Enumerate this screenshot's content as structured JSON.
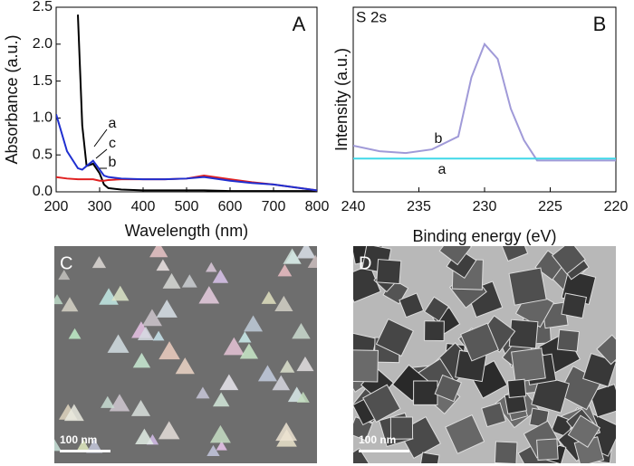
{
  "chart_data": [
    {
      "type": "line",
      "panel_label": "A",
      "xlabel": "Wavelength (nm)",
      "ylabel": "Absorbance (a.u.)",
      "x": [
        200,
        225,
        250,
        260,
        270,
        285,
        300,
        310,
        320,
        350,
        400,
        450,
        500,
        540,
        600,
        650,
        700,
        750,
        800
      ],
      "series": [
        {
          "name": "a",
          "color": "#000000",
          "values": [
            null,
            null,
            2.4,
            0.9,
            0.35,
            0.38,
            0.25,
            0.1,
            0.05,
            0.03,
            0.02,
            0.02,
            0.02,
            0.02,
            0.01,
            0.01,
            0.01,
            0.01,
            0.01
          ]
        },
        {
          "name": "b",
          "color": "#e02020",
          "values": [
            0.2,
            0.18,
            0.17,
            0.17,
            0.17,
            0.17,
            0.15,
            0.15,
            0.16,
            0.17,
            0.17,
            0.17,
            0.18,
            0.22,
            0.17,
            0.13,
            0.1,
            0.06,
            0.02
          ]
        },
        {
          "name": "c",
          "color": "#1f2fd0",
          "values": [
            1.05,
            0.55,
            0.32,
            0.3,
            0.35,
            0.42,
            0.3,
            0.22,
            0.2,
            0.18,
            0.17,
            0.17,
            0.18,
            0.2,
            0.15,
            0.12,
            0.1,
            0.06,
            0.02
          ]
        }
      ],
      "xlim": [
        200,
        800
      ],
      "xticks": [
        200,
        300,
        400,
        500,
        600,
        700,
        800
      ],
      "ylim": [
        0,
        2.5
      ],
      "yticks": [
        {
          "value": 0,
          "label": "0.0"
        },
        0.5,
        {
          "value": 1,
          "label": "1.0"
        },
        1.5,
        {
          "value": 2,
          "label": "2.0"
        },
        2.5
      ]
    },
    {
      "type": "line",
      "panel_label": "B",
      "annotation": "S 2s",
      "xlabel": "Binding energy (eV)",
      "ylabel": "Intensity (a.u.)",
      "x": [
        240,
        238,
        236,
        234,
        232,
        231,
        230,
        229,
        228,
        227,
        226,
        224,
        222,
        220
      ],
      "series": [
        {
          "name": "b",
          "color": "#a09ad8",
          "values": [
            0.25,
            0.22,
            0.21,
            0.23,
            0.3,
            0.62,
            0.8,
            0.72,
            0.45,
            0.28,
            0.17,
            0.17,
            0.17,
            0.17
          ]
        },
        {
          "name": "a",
          "color": "#40d8e8",
          "values": [
            0.18,
            0.18,
            0.18,
            0.18,
            0.18,
            0.18,
            0.18,
            0.18,
            0.18,
            0.18,
            0.18,
            0.18,
            0.18,
            0.18
          ]
        }
      ],
      "xlim": [
        240,
        220
      ],
      "xticks": [
        240,
        235,
        230,
        225,
        220
      ],
      "ylim": [
        0,
        1
      ]
    }
  ],
  "panels": [
    {
      "label": "C",
      "scale_bar": "100 nm"
    },
    {
      "label": "D",
      "scale_bar": "100 nm"
    }
  ]
}
